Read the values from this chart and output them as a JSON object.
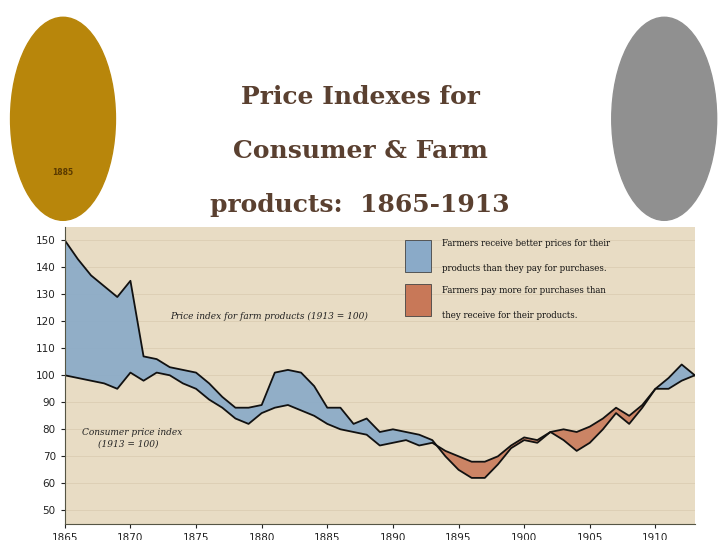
{
  "title_line1": "Price Indexes for",
  "title_line2": "Consumer & Farm",
  "title_line3": "products:  1865-1913",
  "top_bg": "#ffffff",
  "chart_bg": "#e8dcc4",
  "farm_color": "#8aaac8",
  "consumer_color": "#c87858",
  "line_color": "#111111",
  "years": [
    1865,
    1866,
    1867,
    1868,
    1869,
    1870,
    1871,
    1872,
    1873,
    1874,
    1875,
    1876,
    1877,
    1878,
    1879,
    1880,
    1881,
    1882,
    1883,
    1884,
    1885,
    1886,
    1887,
    1888,
    1889,
    1890,
    1891,
    1892,
    1893,
    1894,
    1895,
    1896,
    1897,
    1898,
    1899,
    1900,
    1901,
    1902,
    1903,
    1904,
    1905,
    1906,
    1907,
    1908,
    1909,
    1910,
    1911,
    1912,
    1913
  ],
  "farm_index": [
    150,
    143,
    137,
    133,
    129,
    135,
    107,
    106,
    103,
    102,
    101,
    97,
    92,
    88,
    88,
    89,
    101,
    102,
    101,
    96,
    88,
    88,
    82,
    84,
    79,
    80,
    79,
    78,
    76,
    70,
    65,
    62,
    62,
    67,
    73,
    76,
    75,
    79,
    76,
    72,
    75,
    80,
    86,
    82,
    88,
    95,
    99,
    104,
    100
  ],
  "consumer_index": [
    100,
    99,
    98,
    97,
    95,
    101,
    98,
    101,
    100,
    97,
    95,
    91,
    88,
    84,
    82,
    86,
    88,
    89,
    87,
    85,
    82,
    80,
    79,
    78,
    74,
    75,
    76,
    74,
    75,
    72,
    70,
    68,
    68,
    70,
    74,
    77,
    76,
    79,
    80,
    79,
    81,
    84,
    88,
    85,
    89,
    95,
    95,
    98,
    100
  ],
  "ylim": [
    45,
    155
  ],
  "yticks": [
    50,
    60,
    70,
    80,
    90,
    100,
    110,
    120,
    130,
    140,
    150
  ],
  "xticks": [
    1865,
    1870,
    1875,
    1880,
    1885,
    1890,
    1895,
    1900,
    1905,
    1910
  ],
  "legend_blue1": "Farmers receive better prices for their",
  "legend_blue2": "products than they pay for purchases.",
  "legend_red1": "Farmers pay more for purchases than",
  "legend_red2": "they receive for their products.",
  "farm_label": "Price index for farm products (1913 = 100)",
  "consumer_label1": "Consumer price index",
  "consumer_label2": "(1913 = 100)"
}
